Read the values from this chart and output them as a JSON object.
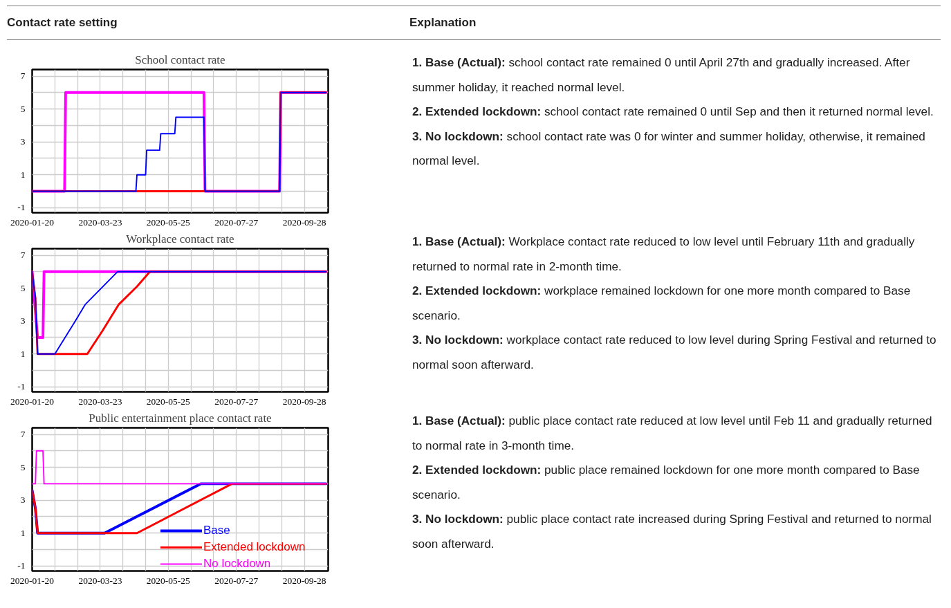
{
  "chart_data": [
    {
      "type": "other",
      "annotations": [
        "Contact rate setting",
        "Explanation"
      ]
    },
    {
      "type": "line",
      "title": "School contact rate",
      "xlim": [
        "2020-01-20",
        "2020-10-20"
      ],
      "ylim": [
        -1.3,
        7.4
      ],
      "xticks": [
        "2020-01-20",
        {
          "value": "2020-02-10",
          "label": null
        },
        {
          "value": "2020-03-02",
          "label": null
        },
        "2020-03-23",
        {
          "value": "2020-04-13",
          "label": null
        },
        {
          "value": "2020-05-04",
          "label": null
        },
        "2020-05-25",
        {
          "value": "2020-06-15",
          "label": null
        },
        {
          "value": "2020-07-06",
          "label": null
        },
        "2020-07-27",
        {
          "value": "2020-08-17",
          "label": null
        },
        {
          "value": "2020-09-07",
          "label": null
        },
        "2020-09-28"
      ],
      "yticks": [
        -1,
        {
          "value": 0,
          "label": null
        },
        1,
        {
          "value": 2,
          "label": null
        },
        3,
        {
          "value": 4,
          "label": null
        },
        5,
        {
          "value": 6,
          "label": null
        },
        7
      ],
      "grid": true,
      "series": [
        {
          "color": "#ff00ff",
          "x": [
            "2020-01-20",
            "2020-02-19",
            "2020-02-20",
            "2020-06-27",
            "2020-06-28",
            "2020-09-05",
            "2020-09-06",
            "2020-10-18"
          ],
          "values": [
            0,
            0,
            6,
            6,
            0,
            0,
            6,
            6
          ]
        },
        {
          "color": "#ff0000",
          "x": [
            "2020-01-20",
            "2020-09-05",
            "2020-09-06",
            "2020-10-18"
          ],
          "values": [
            0,
            0,
            6,
            6
          ]
        },
        {
          "color": "#0000ff",
          "x": [
            "2020-01-20",
            "2020-04-25",
            "2020-04-26",
            "2020-05-04",
            "2020-05-05",
            "2020-05-17",
            "2020-05-18",
            "2020-05-31",
            "2020-06-01",
            "2020-06-27",
            "2020-06-28",
            "2020-09-05",
            "2020-09-06",
            "2020-10-18"
          ],
          "values": [
            0,
            0,
            1,
            1,
            2.5,
            2.5,
            3.5,
            3.5,
            4.5,
            4.5,
            0,
            0,
            6,
            6
          ]
        }
      ],
      "annotations": [
        "1. Base (Actual): school contact rate remained 0 until April 27th and gradually increased. After summer holiday, it reached normal level.",
        "2. Extended lockdown: school contact rate remained 0 until Sep and then it returned normal level.",
        "3. No lockdown: school contact rate was 0 for winter and summer holiday, otherwise, it remained normal level."
      ]
    },
    {
      "type": "line",
      "title": "Workplace contact rate",
      "xlim": [
        "2020-01-20",
        "2020-10-20"
      ],
      "ylim": [
        -1.3,
        7.4
      ],
      "xticks": [
        "2020-01-20",
        {
          "value": "2020-02-10",
          "label": null
        },
        {
          "value": "2020-03-02",
          "label": null
        },
        "2020-03-23",
        {
          "value": "2020-04-13",
          "label": null
        },
        {
          "value": "2020-05-04",
          "label": null
        },
        "2020-05-25",
        {
          "value": "2020-06-15",
          "label": null
        },
        {
          "value": "2020-07-06",
          "label": null
        },
        "2020-07-27",
        {
          "value": "2020-08-17",
          "label": null
        },
        {
          "value": "2020-09-07",
          "label": null
        },
        "2020-09-28"
      ],
      "yticks": [
        -1,
        {
          "value": 0,
          "label": null
        },
        1,
        {
          "value": 2,
          "label": null
        },
        3,
        {
          "value": 4,
          "label": null
        },
        5,
        {
          "value": 6,
          "label": null
        },
        7
      ],
      "grid": true,
      "series": [
        {
          "color": "#ff00ff",
          "x": [
            "2020-01-20",
            "2020-01-25",
            "2020-01-30",
            "2020-01-31",
            "2020-10-18"
          ],
          "values": [
            6,
            2,
            2,
            6,
            6
          ]
        },
        {
          "color": "#ff0000",
          "x": [
            "2020-01-20",
            "2020-01-23",
            "2020-01-25",
            "2020-03-11",
            "2020-03-25",
            "2020-04-09",
            "2020-04-26",
            "2020-05-08",
            "2020-10-18"
          ],
          "values": [
            6,
            4.4,
            1,
            1,
            2.4,
            4,
            5.1,
            6,
            6
          ]
        },
        {
          "color": "#0000ff",
          "x": [
            "2020-01-20",
            "2020-01-23",
            "2020-01-25",
            "2020-02-10",
            "2020-02-28",
            "2020-03-09",
            "2020-03-18",
            "2020-04-08",
            "2020-10-18"
          ],
          "values": [
            6,
            4.4,
            1,
            1,
            2.9,
            4,
            4.6,
            6,
            6
          ]
        }
      ],
      "annotations": [
        "1. Base (Actual): Workplace contact rate reduced to low level until February 11th and gradually returned to normal rate in 2-month time.",
        "2. Extended lockdown: workplace remained lockdown for one more month compared to Base scenario.",
        "3. No lockdown: workplace contact rate reduced to low level during Spring Festival and returned to normal soon afterward."
      ]
    },
    {
      "type": "line",
      "title": "Public entertainment place contact rate",
      "xlim": [
        "2020-01-20",
        "2020-10-20"
      ],
      "ylim": [
        -1.3,
        7.4
      ],
      "xticks": [
        "2020-01-20",
        {
          "value": "2020-02-10",
          "label": null
        },
        {
          "value": "2020-03-02",
          "label": null
        },
        "2020-03-23",
        {
          "value": "2020-04-13",
          "label": null
        },
        {
          "value": "2020-05-04",
          "label": null
        },
        "2020-05-25",
        {
          "value": "2020-06-15",
          "label": null
        },
        {
          "value": "2020-07-06",
          "label": null
        },
        "2020-07-27",
        {
          "value": "2020-08-17",
          "label": null
        },
        {
          "value": "2020-09-07",
          "label": null
        },
        "2020-09-28"
      ],
      "yticks": [
        -1,
        {
          "value": 0,
          "label": null
        },
        1,
        {
          "value": 2,
          "label": null
        },
        3,
        {
          "value": 4,
          "label": null
        },
        5,
        {
          "value": 6,
          "label": null
        },
        7
      ],
      "grid": true,
      "legend": "bottom right",
      "series": [
        {
          "name": "Base",
          "color": "#0000ff",
          "x": [
            "2020-01-20",
            "2020-01-23",
            "2020-01-25",
            "2020-03-27",
            "2020-06-24",
            "2020-10-18"
          ],
          "values": [
            3.6,
            2.5,
            1,
            1,
            4,
            4
          ]
        },
        {
          "name": "Extended lockdown",
          "color": "#ff0000",
          "x": [
            "2020-01-20",
            "2020-01-23",
            "2020-01-25",
            "2020-04-26",
            "2020-07-23",
            "2020-10-18"
          ],
          "values": [
            3.6,
            2.5,
            1,
            1,
            4,
            4
          ]
        },
        {
          "name": "No lockdown",
          "color": "#ff00ff",
          "x": [
            "2020-01-20",
            "2020-01-23",
            "2020-01-24",
            "2020-01-30",
            "2020-01-31",
            "2020-10-18"
          ],
          "values": [
            4,
            4,
            6,
            6,
            4,
            4
          ]
        }
      ],
      "annotations": [
        "1. Base (Actual): public place contact rate reduced at low level until Feb 11 and gradually returned to normal rate in 3-month time.",
        "2. Extended lockdown: public place remained lockdown for one more month compared to Base scenario.",
        "3. No lockdown: public place contact rate increased during Spring Festival and returned to normal soon afterward."
      ]
    }
  ]
}
